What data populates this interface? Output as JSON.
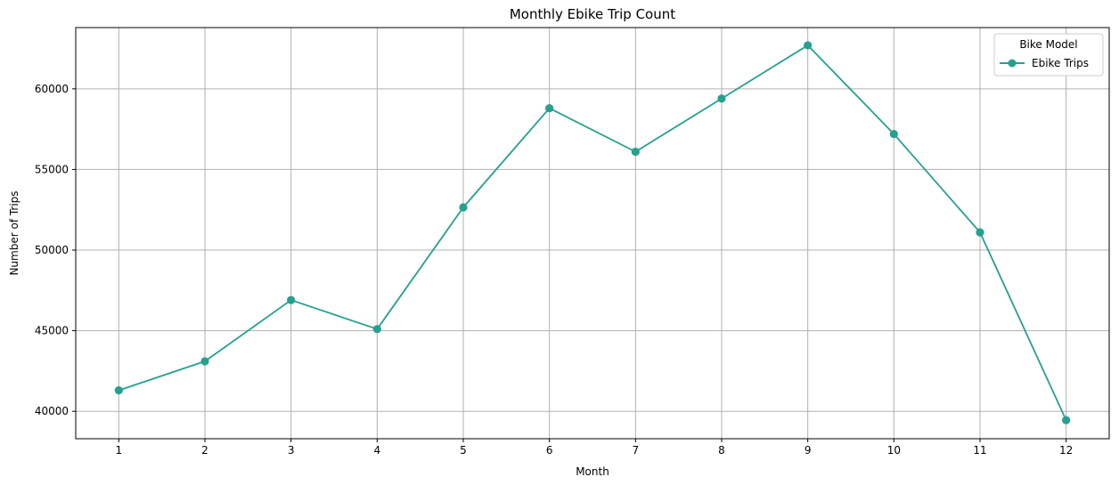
{
  "chart_data": {
    "type": "line",
    "title": "Monthly Ebike Trip Count",
    "xlabel": "Month",
    "ylabel": "Number of Trips",
    "x": [
      1,
      2,
      3,
      4,
      5,
      6,
      7,
      8,
      9,
      10,
      11,
      12
    ],
    "x_tick_labels": [
      "1",
      "2",
      "3",
      "4",
      "5",
      "6",
      "7",
      "8",
      "9",
      "10",
      "11",
      "12"
    ],
    "y_ticks": [
      40000,
      45000,
      50000,
      55000,
      60000
    ],
    "y_tick_labels": [
      "40000",
      "45000",
      "50000",
      "55000",
      "60000"
    ],
    "xlim": [
      0.5,
      12.5
    ],
    "ylim": [
      38300,
      63800
    ],
    "grid": true,
    "legend": {
      "title": "Bike Model",
      "placement": "top-right"
    },
    "series": [
      {
        "name": "Ebike Trips",
        "values": [
          41300,
          43100,
          46900,
          45100,
          52650,
          58800,
          56100,
          59400,
          62700,
          57200,
          51100,
          39450
        ],
        "color": "#26a08f",
        "marker": "circle"
      }
    ]
  }
}
